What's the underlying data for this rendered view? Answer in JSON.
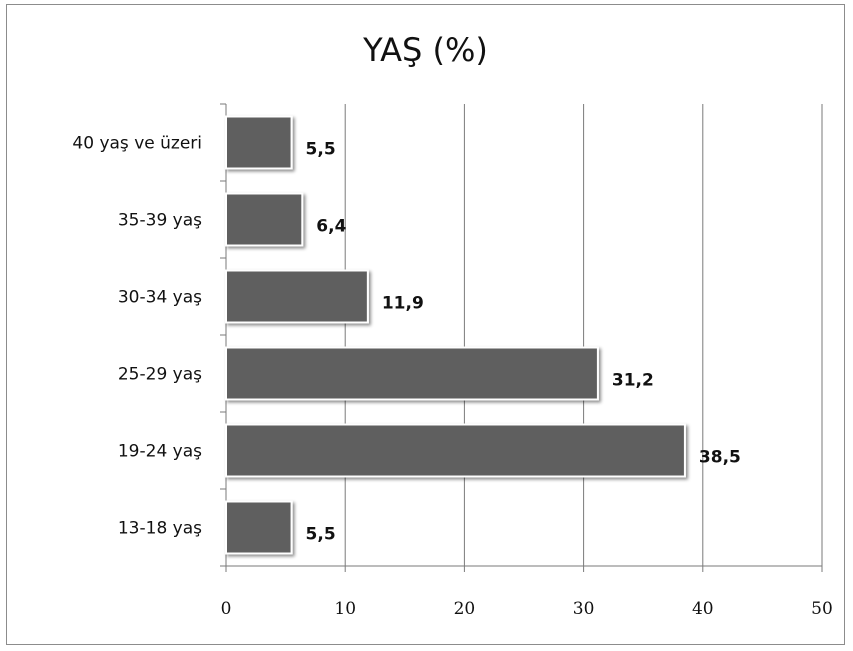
{
  "chart_data": {
    "type": "bar",
    "orientation": "horizontal",
    "title": "YAŞ (%)",
    "categories": [
      "13-18 yaş",
      "19-24 yaş",
      "25-29 yaş",
      "30-34 yaş",
      "35-39 yaş",
      "40 yaş ve üzeri"
    ],
    "values": [
      5.5,
      38.5,
      31.2,
      11.9,
      6.4,
      5.5
    ],
    "value_labels": [
      "5,5",
      "38,5",
      "31,2",
      "11,9",
      "6,4",
      "5,5"
    ],
    "xlim": [
      0,
      50
    ],
    "xticks": [
      0,
      10,
      20,
      30,
      40,
      50
    ],
    "xtick_labels": [
      "0",
      "10",
      "20",
      "30",
      "40",
      "50"
    ],
    "grid": "vertical",
    "legend": "none",
    "bar_color": "#5f5f5f",
    "gridline_color": "#7a7a7a"
  }
}
